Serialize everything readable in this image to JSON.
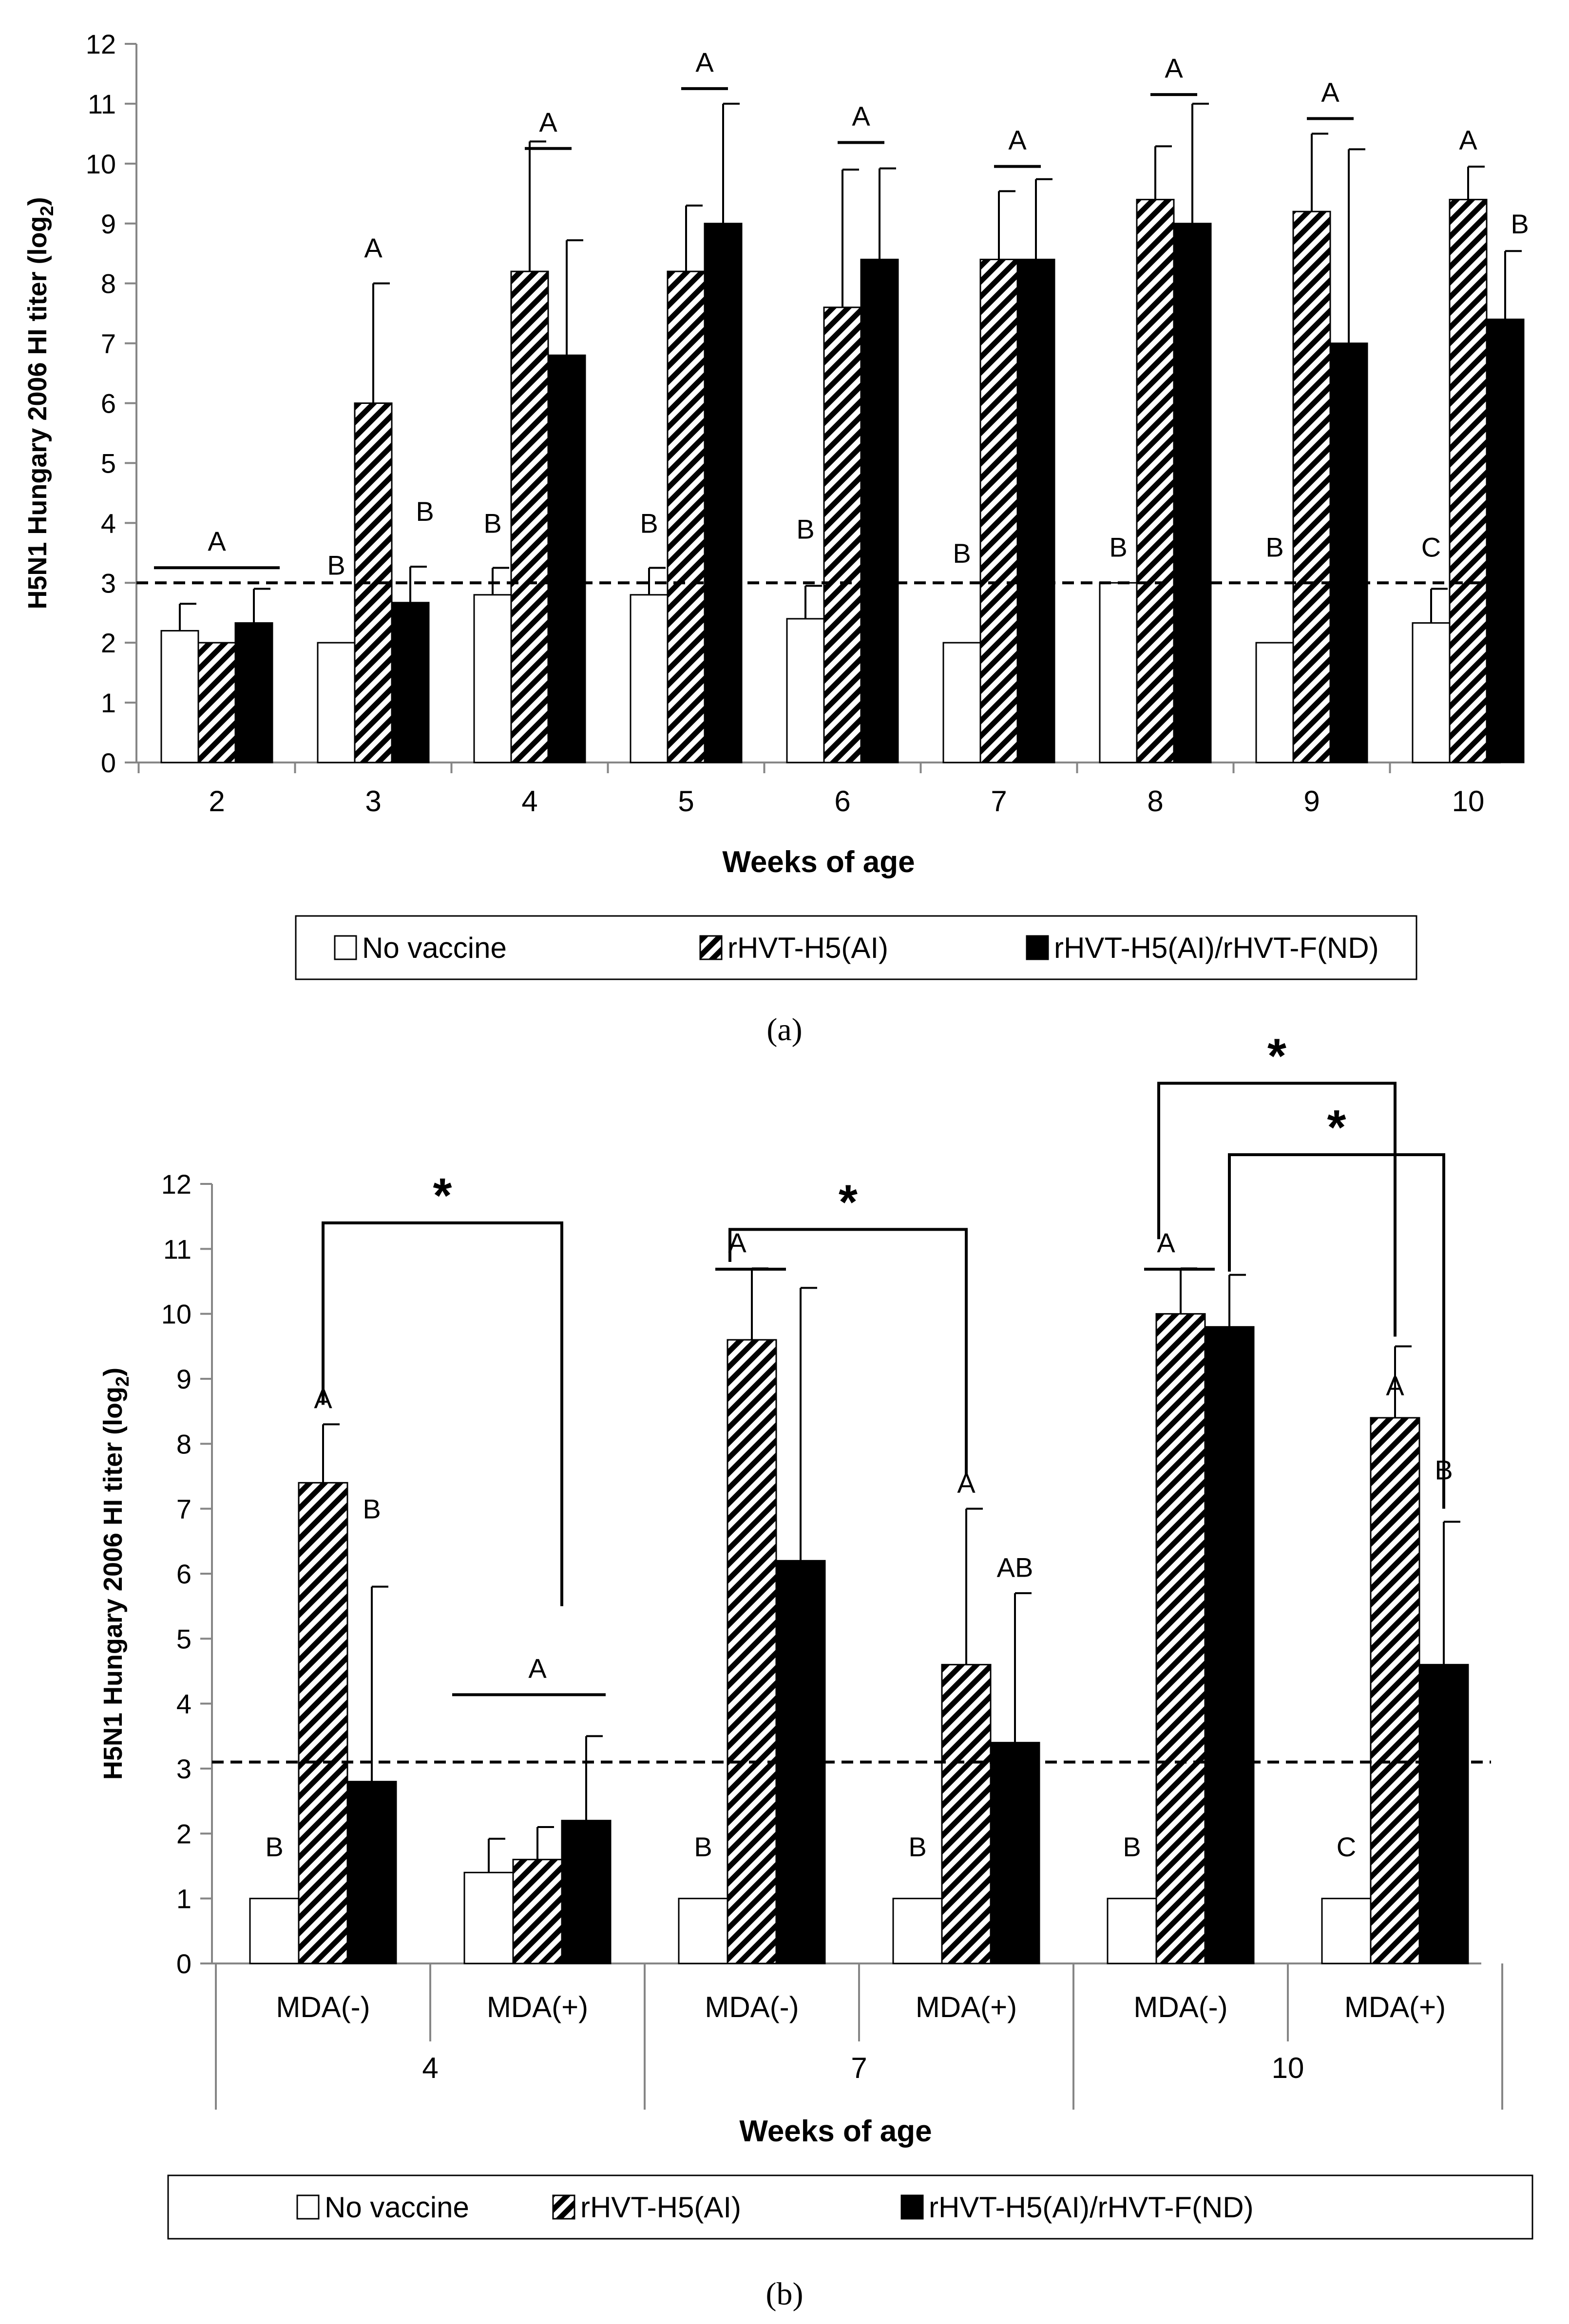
{
  "legend": {
    "items": [
      {
        "name": "No vaccine",
        "style": "white"
      },
      {
        "name": "rHVT-H5(AI)",
        "style": "hatched"
      },
      {
        "name": "rHVT-H5(AI)/rHVT-F(ND)",
        "style": "black"
      }
    ]
  },
  "colors": {
    "bar_edge": "#000000",
    "black_bar": "#000000",
    "white_bar": "#ffffff",
    "axis": "#868686"
  },
  "chart_data": [
    {
      "panel": "a",
      "panel_label": "(a)",
      "type": "bar",
      "ylabel": "H5N1 Hungary 2006 HI titer (log2)",
      "xlabel": "Weeks of age",
      "ylim": [
        0,
        12
      ],
      "yticks": [
        "0",
        "1",
        "2",
        "3",
        "4",
        "5",
        "6",
        "7",
        "8",
        "9",
        "10",
        "11",
        "12"
      ],
      "threshold": 3,
      "categories": [
        "2",
        "3",
        "4",
        "5",
        "6",
        "7",
        "8",
        "9",
        "10"
      ],
      "series": [
        {
          "name": "No vaccine",
          "style": "white",
          "values": [
            2.2,
            2.0,
            2.8,
            2.8,
            2.4,
            2.0,
            3.0,
            2.0,
            2.33
          ],
          "errors": [
            0.45,
            0,
            0.45,
            0.45,
            0.55,
            0,
            0,
            0,
            0.57
          ]
        },
        {
          "name": "rHVT-H5(AI)",
          "style": "hatched",
          "values": [
            2.0,
            6.0,
            8.2,
            8.2,
            7.6,
            8.4,
            9.4,
            9.2,
            9.4
          ],
          "errors": [
            0,
            2.0,
            2.17,
            1.1,
            2.3,
            1.14,
            0.89,
            1.3,
            0.55
          ]
        },
        {
          "name": "rHVT-H5(AI)/rHVT-F(ND)",
          "style": "black",
          "values": [
            2.33,
            2.67,
            6.8,
            9.0,
            8.4,
            8.4,
            9.0,
            7.0,
            7.4
          ],
          "errors": [
            0.57,
            0.6,
            1.92,
            2.0,
            1.52,
            1.34,
            2.0,
            3.24,
            1.14
          ]
        }
      ],
      "annotations": [
        {
          "text": "A",
          "category": 0,
          "bar": "group-line",
          "y": 3.7
        },
        {
          "text": "B",
          "category": 1,
          "bar": 0,
          "y": 3.3
        },
        {
          "text": "A",
          "category": 1,
          "bar": 1,
          "y": 8.6
        },
        {
          "text": "B",
          "category": 1,
          "bar": 2,
          "y": 4.2
        },
        {
          "text": "B",
          "category": 2,
          "bar": 0,
          "y": 4.0
        },
        {
          "text": "A",
          "category": 2,
          "bar": "line12",
          "y": 10.7
        },
        {
          "text": "B",
          "category": 3,
          "bar": 0,
          "y": 4.0
        },
        {
          "text": "A",
          "category": 3,
          "bar": "line12",
          "y": 11.7
        },
        {
          "text": "B",
          "category": 4,
          "bar": 0,
          "y": 3.9
        },
        {
          "text": "A",
          "category": 4,
          "bar": "line12",
          "y": 10.8
        },
        {
          "text": "B",
          "category": 5,
          "bar": 0,
          "y": 3.5
        },
        {
          "text": "A",
          "category": 5,
          "bar": "line12",
          "y": 10.4
        },
        {
          "text": "B",
          "category": 6,
          "bar": 0,
          "y": 3.6
        },
        {
          "text": "A",
          "category": 6,
          "bar": "line12",
          "y": 11.6
        },
        {
          "text": "B",
          "category": 7,
          "bar": 0,
          "y": 3.6
        },
        {
          "text": "A",
          "category": 7,
          "bar": "line12",
          "y": 11.2
        },
        {
          "text": "C",
          "category": 8,
          "bar": 0,
          "y": 3.6
        },
        {
          "text": "A",
          "category": 8,
          "bar": 1,
          "y": 10.4
        },
        {
          "text": "B",
          "category": 8,
          "bar": 2,
          "y": 9.0
        }
      ]
    },
    {
      "panel": "b",
      "panel_label": "(b)",
      "type": "bar",
      "ylabel": "H5N1 Hungary 2006 HI titer (log2)",
      "xlabel": "Weeks of age",
      "ylim": [
        0,
        12
      ],
      "yticks": [
        "0",
        "1",
        "2",
        "3",
        "4",
        "5",
        "6",
        "7",
        "8",
        "9",
        "10",
        "11",
        "12"
      ],
      "threshold": 3.1,
      "categories": [
        "MDA(-)",
        "MDA(+)",
        "MDA(-)",
        "MDA(+)",
        "MDA(-)",
        "MDA(+)"
      ],
      "groups": [
        {
          "label": "4",
          "span": [
            0,
            1
          ]
        },
        {
          "label": "7",
          "span": [
            2,
            3
          ]
        },
        {
          "label": "10",
          "span": [
            4,
            5
          ]
        }
      ],
      "series": [
        {
          "name": "No vaccine",
          "style": "white",
          "values": [
            1.0,
            1.4,
            1.0,
            1.0,
            1.0,
            1.0
          ],
          "errors": [
            0,
            0.52,
            0,
            0,
            0,
            0
          ]
        },
        {
          "name": "rHVT-H5(AI)",
          "style": "hatched",
          "values": [
            7.4,
            1.6,
            9.6,
            4.6,
            10.0,
            8.4
          ],
          "errors": [
            0.9,
            0.5,
            1.1,
            2.4,
            0.7,
            1.1
          ]
        },
        {
          "name": "rHVT-H5(AI)/rHVT-F(ND)",
          "style": "black",
          "values": [
            2.8,
            2.2,
            6.2,
            3.4,
            9.8,
            4.6
          ],
          "errors": [
            3.0,
            1.3,
            4.2,
            2.3,
            0.8,
            2.2
          ]
        }
      ],
      "annotations": [
        {
          "text": "B",
          "category": 0,
          "bar": 0,
          "y": 1.8
        },
        {
          "text": "A",
          "category": 0,
          "bar": 1,
          "y": 8.7
        },
        {
          "text": "B",
          "category": 0,
          "bar": 2,
          "y": 7.0
        },
        {
          "text": "A",
          "category": 1,
          "bar": "line012",
          "y": 4.55
        },
        {
          "text": "B",
          "category": 2,
          "bar": 0,
          "y": 1.8
        },
        {
          "text": "A",
          "category": 2,
          "bar": "line01",
          "y": 11.1
        },
        {
          "text": "B",
          "category": 3,
          "bar": 0,
          "y": 1.8
        },
        {
          "text": "A",
          "category": 3,
          "bar": 1,
          "y": 7.4
        },
        {
          "text": "AB",
          "category": 3,
          "bar": 2,
          "y": 6.1
        },
        {
          "text": "B",
          "category": 4,
          "bar": 0,
          "y": 1.8
        },
        {
          "text": "A",
          "category": 4,
          "bar": "line01",
          "y": 11.1
        },
        {
          "text": "C",
          "category": 5,
          "bar": 0,
          "y": 1.8
        },
        {
          "text": "A",
          "category": 5,
          "bar": 1,
          "y": 8.9
        },
        {
          "text": "B",
          "category": 5,
          "bar": 2,
          "y": 7.6
        }
      ],
      "brackets": [
        {
          "label": "*",
          "from": [
            0,
            1
          ],
          "to": [
            1,
            "mid"
          ],
          "y": 11.4,
          "from_y": 8.6,
          "to_y": 5.5
        },
        {
          "label": "*",
          "from": [
            2,
            0.5
          ],
          "to": [
            3,
            1
          ],
          "y": 11.3,
          "from_y": 10.8,
          "to_y": 7.5
        },
        {
          "label": "*",
          "from": [
            4,
            0.5
          ],
          "to": [
            5,
            1
          ],
          "y": 13.55,
          "from_y": 11.15,
          "to_y": 9.65
        },
        {
          "label": "*",
          "from": [
            4,
            2
          ],
          "to": [
            5,
            2
          ],
          "y": 12.45,
          "from_y": 10.65,
          "to_y": 7.0
        }
      ]
    }
  ]
}
